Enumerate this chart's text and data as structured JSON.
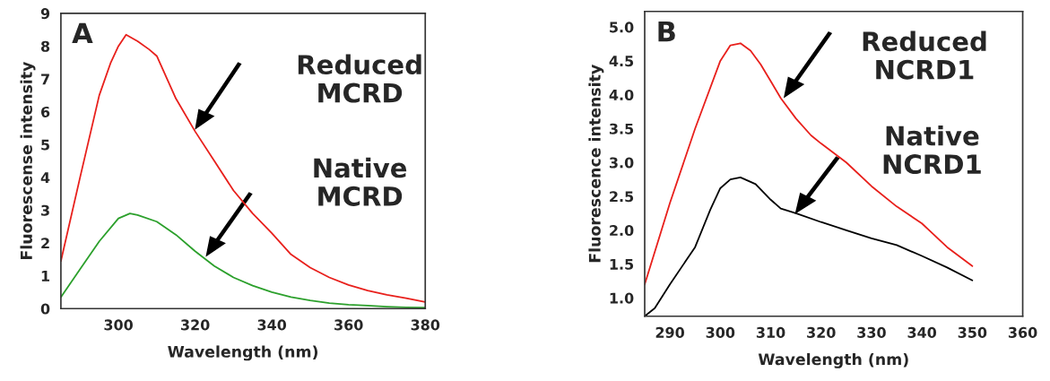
{
  "chart_data": [
    {
      "type": "line",
      "xlabel": "Wavelength (nm)",
      "ylabel": "Fluorescense intensity",
      "xlim": [
        285,
        380
      ],
      "ylim": [
        0,
        9
      ],
      "xticks": [
        300,
        320,
        340,
        360,
        380
      ],
      "yticks": [
        0,
        1,
        2,
        3,
        4,
        5,
        6,
        7,
        8,
        9
      ],
      "grid": false,
      "legend": false,
      "series": [
        {
          "color": "#e8201c",
          "x": [
            285,
            290,
            295,
            298,
            300,
            302,
            305,
            308,
            310,
            315,
            320,
            325,
            330,
            335,
            340,
            345,
            350,
            355,
            360,
            365,
            370,
            375,
            380
          ],
          "values": [
            1.45,
            4.0,
            6.5,
            7.5,
            8.0,
            8.35,
            8.15,
            7.9,
            7.7,
            6.4,
            5.4,
            4.5,
            3.6,
            2.9,
            2.3,
            1.65,
            1.25,
            0.95,
            0.72,
            0.55,
            0.42,
            0.32,
            0.2
          ]
        },
        {
          "color": "#2ca02c",
          "x": [
            285,
            290,
            295,
            300,
            303,
            305,
            310,
            315,
            320,
            325,
            330,
            335,
            340,
            345,
            350,
            355,
            360,
            365,
            370,
            375,
            380
          ],
          "values": [
            0.35,
            1.2,
            2.05,
            2.75,
            2.9,
            2.85,
            2.65,
            2.25,
            1.75,
            1.3,
            0.95,
            0.7,
            0.5,
            0.35,
            0.25,
            0.17,
            0.12,
            0.09,
            0.06,
            0.04,
            0.03
          ]
        }
      ],
      "annotations": [
        "A",
        "Reduced\nMCRD",
        "Native\nMCRD"
      ]
    },
    {
      "type": "line",
      "xlabel": "Wavelength (nm)",
      "ylabel": "Fluorescence intensity",
      "xlim": [
        285,
        360
      ],
      "ylim": [
        0.73,
        5.23
      ],
      "xticks": [
        290,
        300,
        310,
        320,
        330,
        340,
        350,
        360
      ],
      "yticks": [
        {
          "value": 1.0,
          "label": "1.0"
        },
        1.5,
        {
          "value": 2.0,
          "label": "2.0"
        },
        2.5,
        {
          "value": 3.0,
          "label": "3.0"
        },
        3.5,
        {
          "value": 4.0,
          "label": "4.0"
        },
        4.5,
        {
          "value": 5.0,
          "label": "5.0"
        }
      ],
      "grid": false,
      "legend": false,
      "series": [
        {
          "color": "#e8201c",
          "x": [
            285,
            290,
            295,
            300,
            302,
            304,
            306,
            308,
            310,
            312,
            315,
            318,
            320,
            325,
            330,
            335,
            340,
            345,
            350
          ],
          "values": [
            1.2,
            2.4,
            3.5,
            4.5,
            4.73,
            4.76,
            4.65,
            4.45,
            4.2,
            3.95,
            3.65,
            3.4,
            3.28,
            3.0,
            2.65,
            2.35,
            2.1,
            1.75,
            1.47
          ]
        },
        {
          "color": "#000000",
          "x": [
            285,
            287,
            290,
            295,
            298,
            300,
            302,
            304,
            307,
            310,
            312,
            315,
            320,
            325,
            330,
            335,
            340,
            345,
            350
          ],
          "values": [
            0.73,
            0.85,
            1.2,
            1.75,
            2.3,
            2.62,
            2.75,
            2.78,
            2.68,
            2.45,
            2.32,
            2.25,
            2.12,
            2.0,
            1.88,
            1.78,
            1.62,
            1.45,
            1.26
          ]
        }
      ],
      "annotations": [
        "B",
        "Reduced\nNCRD1",
        "Native\nNCRD1"
      ]
    }
  ]
}
